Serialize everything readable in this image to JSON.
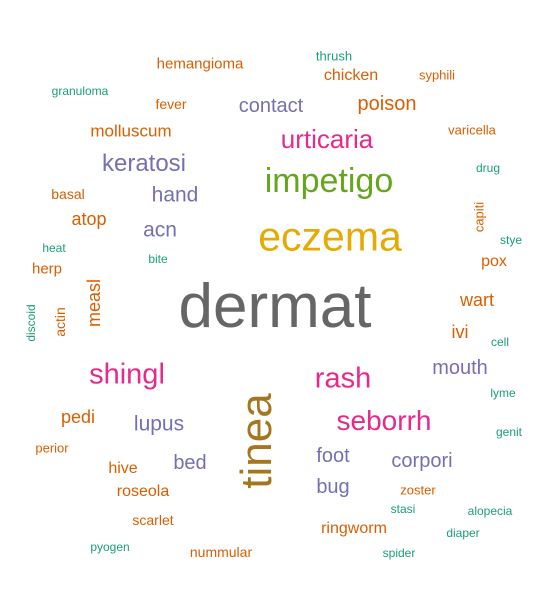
{
  "colors": {
    "gray": "#666666",
    "gold": "#E6AB02",
    "green": "#66A61E",
    "magenta": "#E7298A",
    "purple": "#7570B3",
    "orange": "#D95F02",
    "teal": "#1B9E77",
    "olive": "#A6761D"
  },
  "words": [
    "dermat",
    "eczema",
    "impetigo",
    "urticaria",
    "keratosi",
    "tinea",
    "rash",
    "shingl",
    "seborrh",
    "contact",
    "poison",
    "hand",
    "acn",
    "mouth",
    "lupus",
    "bed",
    "foot",
    "corpori",
    "bug",
    "molluscum",
    "hemangioma",
    "chicken",
    "atop",
    "measl",
    "wart",
    "ivi",
    "pedi",
    "hive",
    "roseola",
    "scarlet",
    "ringworm",
    "nummular",
    "fever",
    "basal",
    "herp",
    "actin",
    "syphili",
    "varicella",
    "pox",
    "capiti",
    "zoster",
    "perior",
    "thrush",
    "granuloma",
    "drug",
    "heat",
    "bite",
    "discoid",
    "stye",
    "cell",
    "lyme",
    "genit",
    "stasi",
    "alopecia",
    "diaper",
    "pyogen",
    "spider"
  ]
}
